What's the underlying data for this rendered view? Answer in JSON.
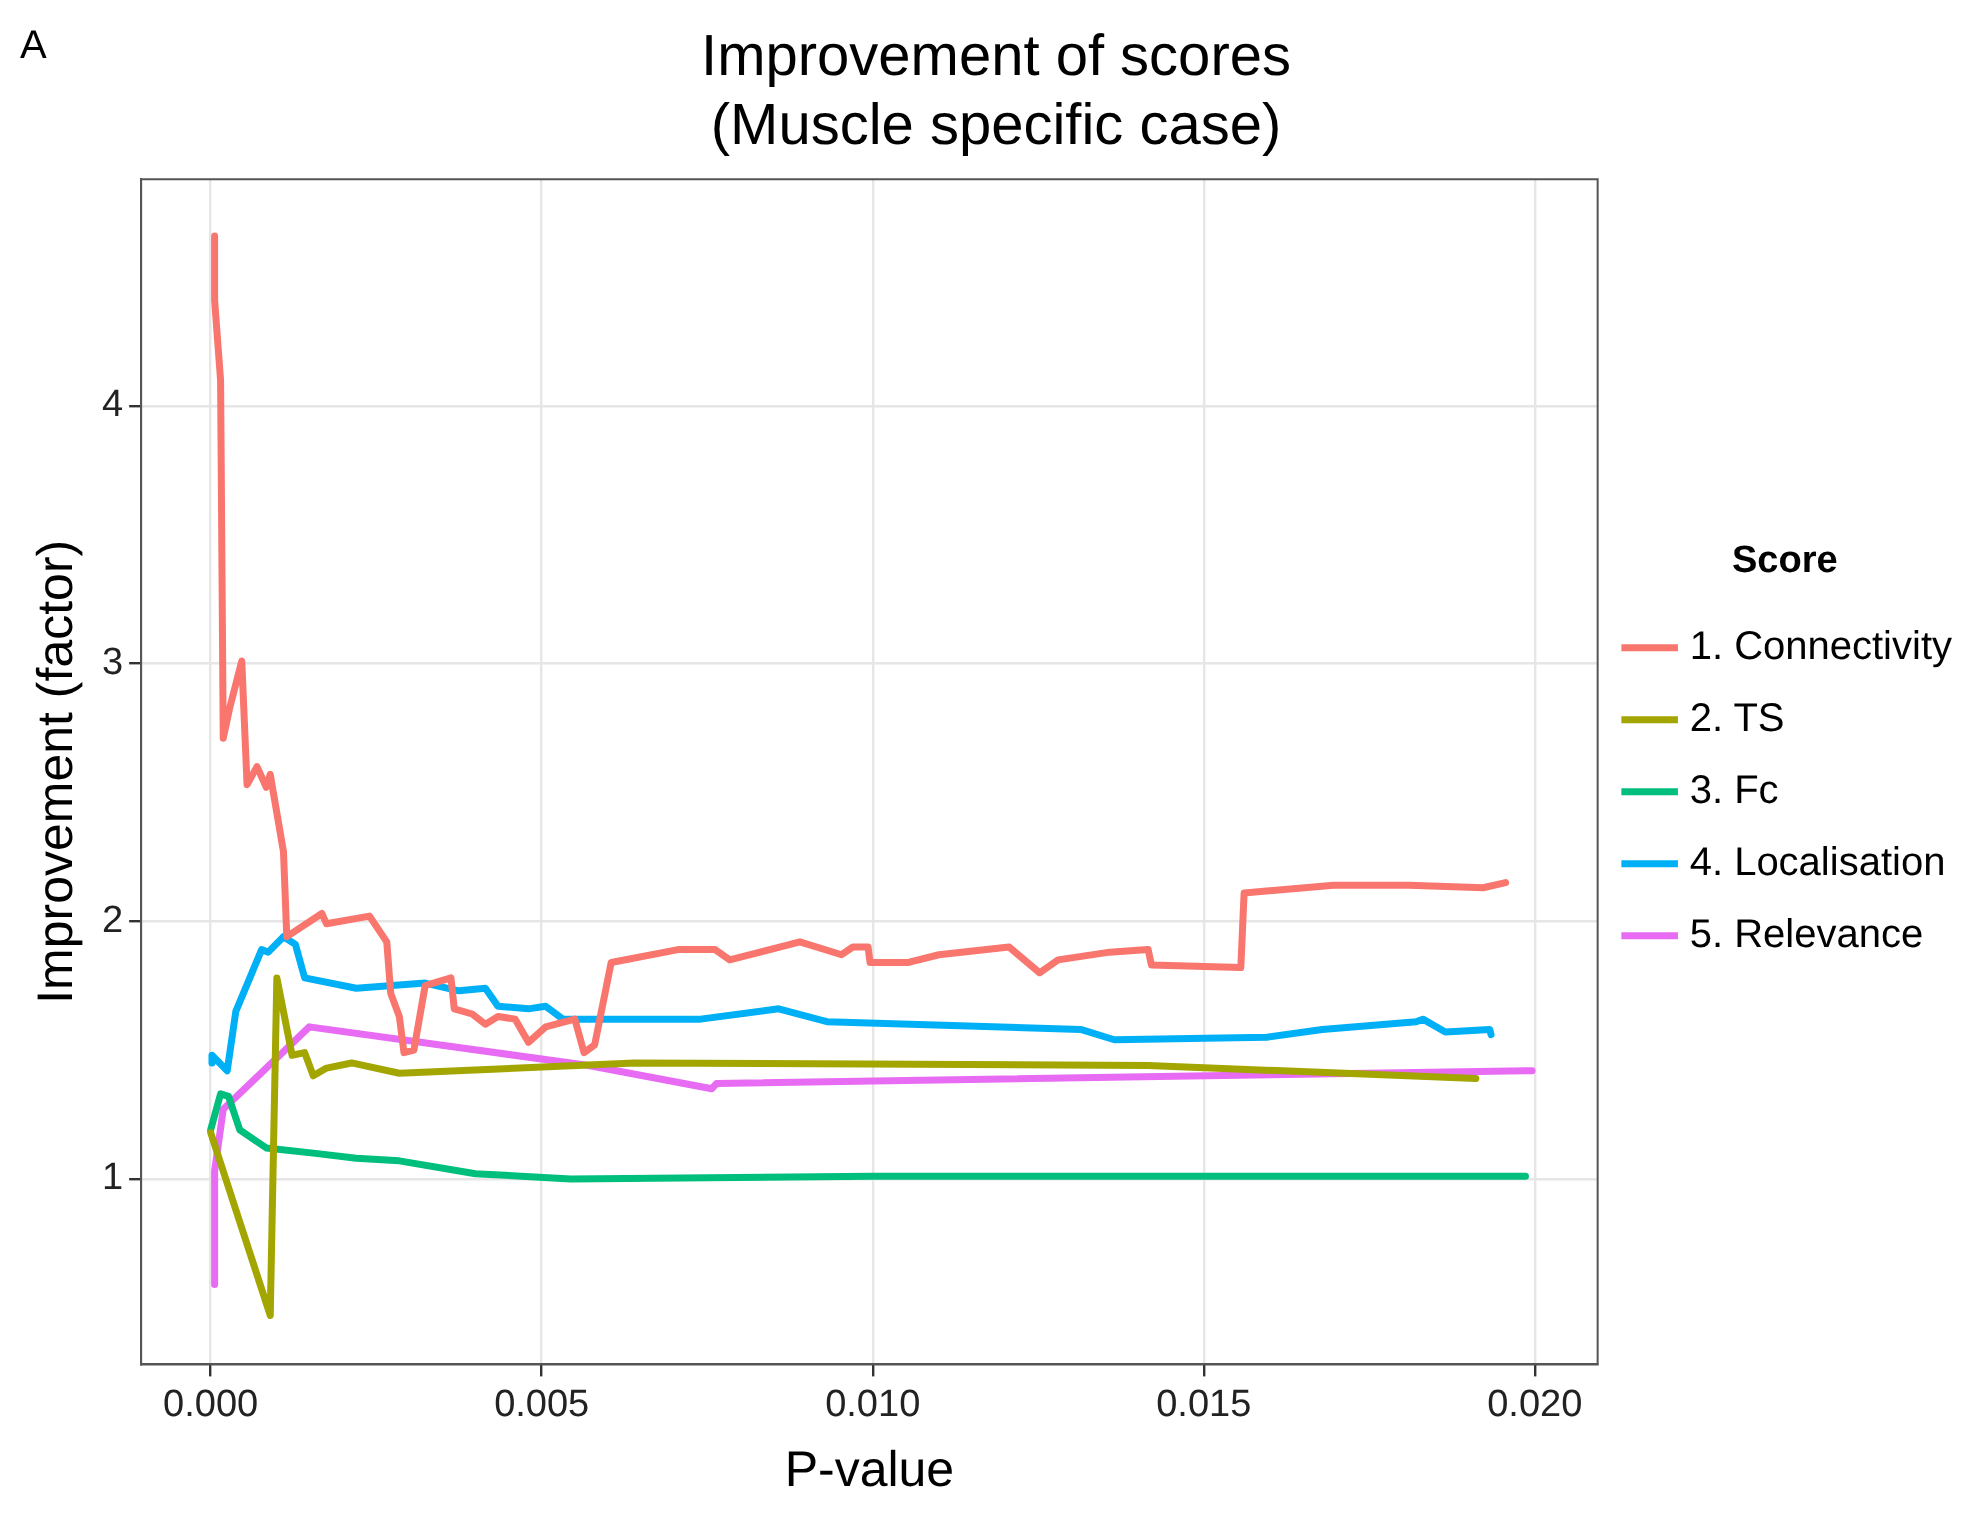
{
  "chart_data": {
    "type": "line",
    "title": "Improvement of scores\n(Muscle specific case)",
    "xlabel": "P-value",
    "ylabel": "Improvement (factor)",
    "legend_title": "Score",
    "annotations": [
      "A"
    ],
    "xlim": [
      -0.00105,
      0.02095
    ],
    "ylim": [
      0.28,
      4.88
    ],
    "xticks": [
      {
        "value": 0,
        "label": "0.000"
      },
      {
        "value": 0.005,
        "label": "0.005"
      },
      {
        "value": 0.01,
        "label": "0.010"
      },
      {
        "value": 0.015,
        "label": "0.015"
      },
      {
        "value": 0.02,
        "label": "0.020"
      }
    ],
    "yticks": [
      1,
      2,
      3,
      4
    ],
    "grid": true,
    "legend": "right",
    "marker": "none",
    "line_style": "solid",
    "series": [
      {
        "name": "1. Connectivity",
        "color": "#f8766d",
        "x": [
          6e-05,
          6e-05,
          0.00015,
          0.00019,
          0.00029,
          0.00047,
          0.00055,
          0.0007,
          0.00084,
          0.0009,
          0.0011,
          0.00115,
          0.00168,
          0.00175,
          0.0024,
          0.00266,
          0.00272,
          0.00285,
          0.00292,
          0.00307,
          0.00324,
          0.00363,
          0.00368,
          0.00395,
          0.00415,
          0.00434,
          0.0046,
          0.0048,
          0.00506,
          0.0055,
          0.00564,
          0.0058,
          0.00605,
          0.00706,
          0.00762,
          0.00784,
          0.0089,
          0.00953,
          0.0097,
          0.00993,
          0.00996,
          0.01054,
          0.011,
          0.01206,
          0.01252,
          0.0128,
          0.01358,
          0.01416,
          0.01421,
          0.01556,
          0.01561,
          0.01696,
          0.0181,
          0.01922,
          0.01956
        ],
        "values": [
          4.66,
          4.41,
          4.1,
          2.71,
          2.83,
          3.01,
          2.53,
          2.6,
          2.52,
          2.57,
          2.27,
          1.94,
          2.03,
          1.99,
          2.02,
          1.92,
          1.72,
          1.63,
          1.49,
          1.5,
          1.75,
          1.78,
          1.66,
          1.64,
          1.6,
          1.63,
          1.62,
          1.53,
          1.59,
          1.62,
          1.49,
          1.52,
          1.84,
          1.89,
          1.89,
          1.85,
          1.92,
          1.87,
          1.9,
          1.9,
          1.84,
          1.84,
          1.87,
          1.9,
          1.8,
          1.85,
          1.88,
          1.89,
          1.83,
          1.82,
          2.11,
          2.14,
          2.14,
          2.13,
          2.15
        ]
      },
      {
        "name": "2. TS",
        "color": "#a3a500",
        "x": [
          0,
          0.0009,
          0.001,
          0.00123,
          0.00142,
          0.00155,
          0.00175,
          0.00213,
          0.00285,
          0.0064,
          0.01416,
          0.01911
        ],
        "values": [
          1.18,
          0.47,
          1.78,
          1.48,
          1.49,
          1.4,
          1.43,
          1.45,
          1.41,
          1.45,
          1.44,
          1.39
        ]
      },
      {
        "name": "3. Fc",
        "color": "#00bf7d",
        "x": [
          0,
          0.00015,
          0.00027,
          0.00044,
          0.00084,
          0.00155,
          0.0022,
          0.00285,
          0.004,
          0.00544,
          0.01,
          0.01986
        ],
        "values": [
          1.19,
          1.33,
          1.32,
          1.19,
          1.12,
          1.1,
          1.08,
          1.07,
          1.02,
          1.0,
          1.01,
          1.01
        ]
      },
      {
        "name": "4. Localisation",
        "color": "#00b0f6",
        "x": [
          2e-05,
          2e-05,
          0.00025,
          0.00038,
          0.00077,
          0.00087,
          0.0011,
          0.00128,
          0.00142,
          0.0022,
          0.00324,
          0.00375,
          0.00415,
          0.00434,
          0.0048,
          0.00506,
          0.00532,
          0.0074,
          0.00858,
          0.00931,
          0.01314,
          0.01365,
          0.01595,
          0.01679,
          0.01821,
          0.01831,
          0.01865,
          0.01932,
          0.01934
        ],
        "values": [
          1.45,
          1.48,
          1.42,
          1.65,
          1.89,
          1.88,
          1.94,
          1.91,
          1.78,
          1.74,
          1.76,
          1.73,
          1.74,
          1.67,
          1.66,
          1.67,
          1.62,
          1.62,
          1.66,
          1.61,
          1.58,
          1.54,
          1.55,
          1.58,
          1.61,
          1.62,
          1.57,
          1.58,
          1.56
        ]
      },
      {
        "name": "5. Relevance",
        "color": "#e76bf3",
        "x": [
          6e-05,
          6e-05,
          0.00019,
          0.00149,
          0.00571,
          0.00757,
          0.00764,
          0.01996
        ],
        "values": [
          0.59,
          1.03,
          1.27,
          1.59,
          1.44,
          1.35,
          1.37,
          1.42
        ]
      }
    ]
  }
}
